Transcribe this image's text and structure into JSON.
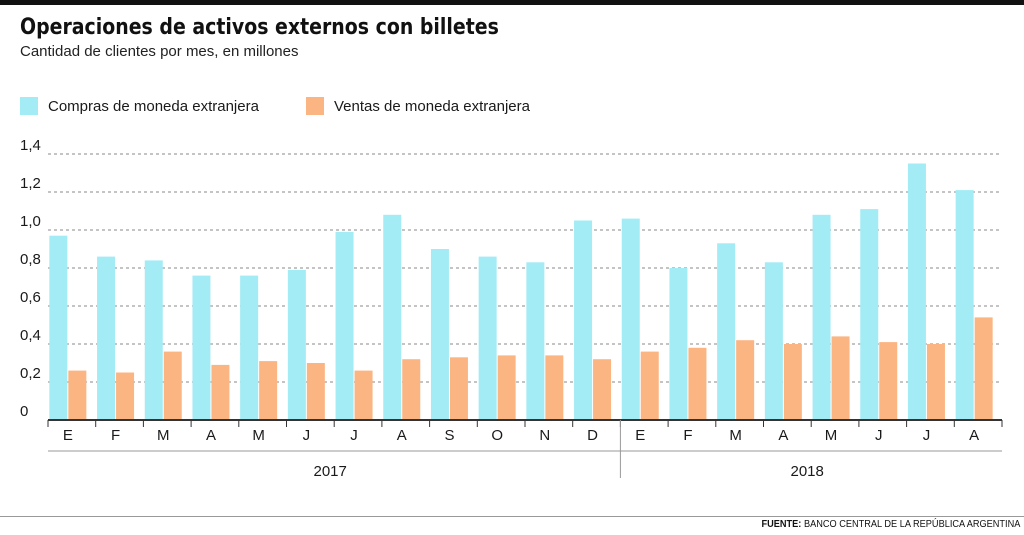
{
  "colors": {
    "compras": "#a3ecf6",
    "ventas": "#fbb583",
    "axis": "#333333",
    "grid": "#8a8a8a"
  },
  "chart_data": {
    "type": "bar",
    "title": "Operaciones de activos externos con billetes",
    "subtitle": "Cantidad de clientes por mes, en millones",
    "categories": [
      "E",
      "F",
      "M",
      "A",
      "M",
      "J",
      "J",
      "A",
      "S",
      "O",
      "N",
      "D",
      "E",
      "F",
      "M",
      "A",
      "M",
      "J",
      "J",
      "A"
    ],
    "groups": [
      {
        "label": "2017",
        "start": 0,
        "end": 11
      },
      {
        "label": "2018",
        "start": 12,
        "end": 19
      }
    ],
    "series": [
      {
        "name": "Compras de moneda extranjera",
        "values": [
          0.97,
          0.86,
          0.84,
          0.76,
          0.76,
          0.79,
          0.99,
          1.08,
          0.9,
          0.86,
          0.83,
          1.05,
          1.06,
          0.8,
          0.93,
          0.83,
          1.08,
          1.11,
          1.35,
          1.21
        ]
      },
      {
        "name": "Ventas de moneda extranjera",
        "values": [
          0.26,
          0.25,
          0.36,
          0.29,
          0.31,
          0.3,
          0.26,
          0.32,
          0.33,
          0.34,
          0.34,
          0.32,
          0.36,
          0.38,
          0.42,
          0.4,
          0.44,
          0.41,
          0.4,
          0.54
        ]
      }
    ],
    "yticks": [
      "0",
      "0,2",
      "0,4",
      "0,6",
      "0,8",
      "1,0",
      "1,2",
      "1,4"
    ],
    "ylim": [
      0,
      1.4
    ],
    "grid": true,
    "legend": "top-left"
  },
  "source": {
    "label": "FUENTE:",
    "text": "BANCO CENTRAL DE LA REPÚBLICA ARGENTINA"
  }
}
